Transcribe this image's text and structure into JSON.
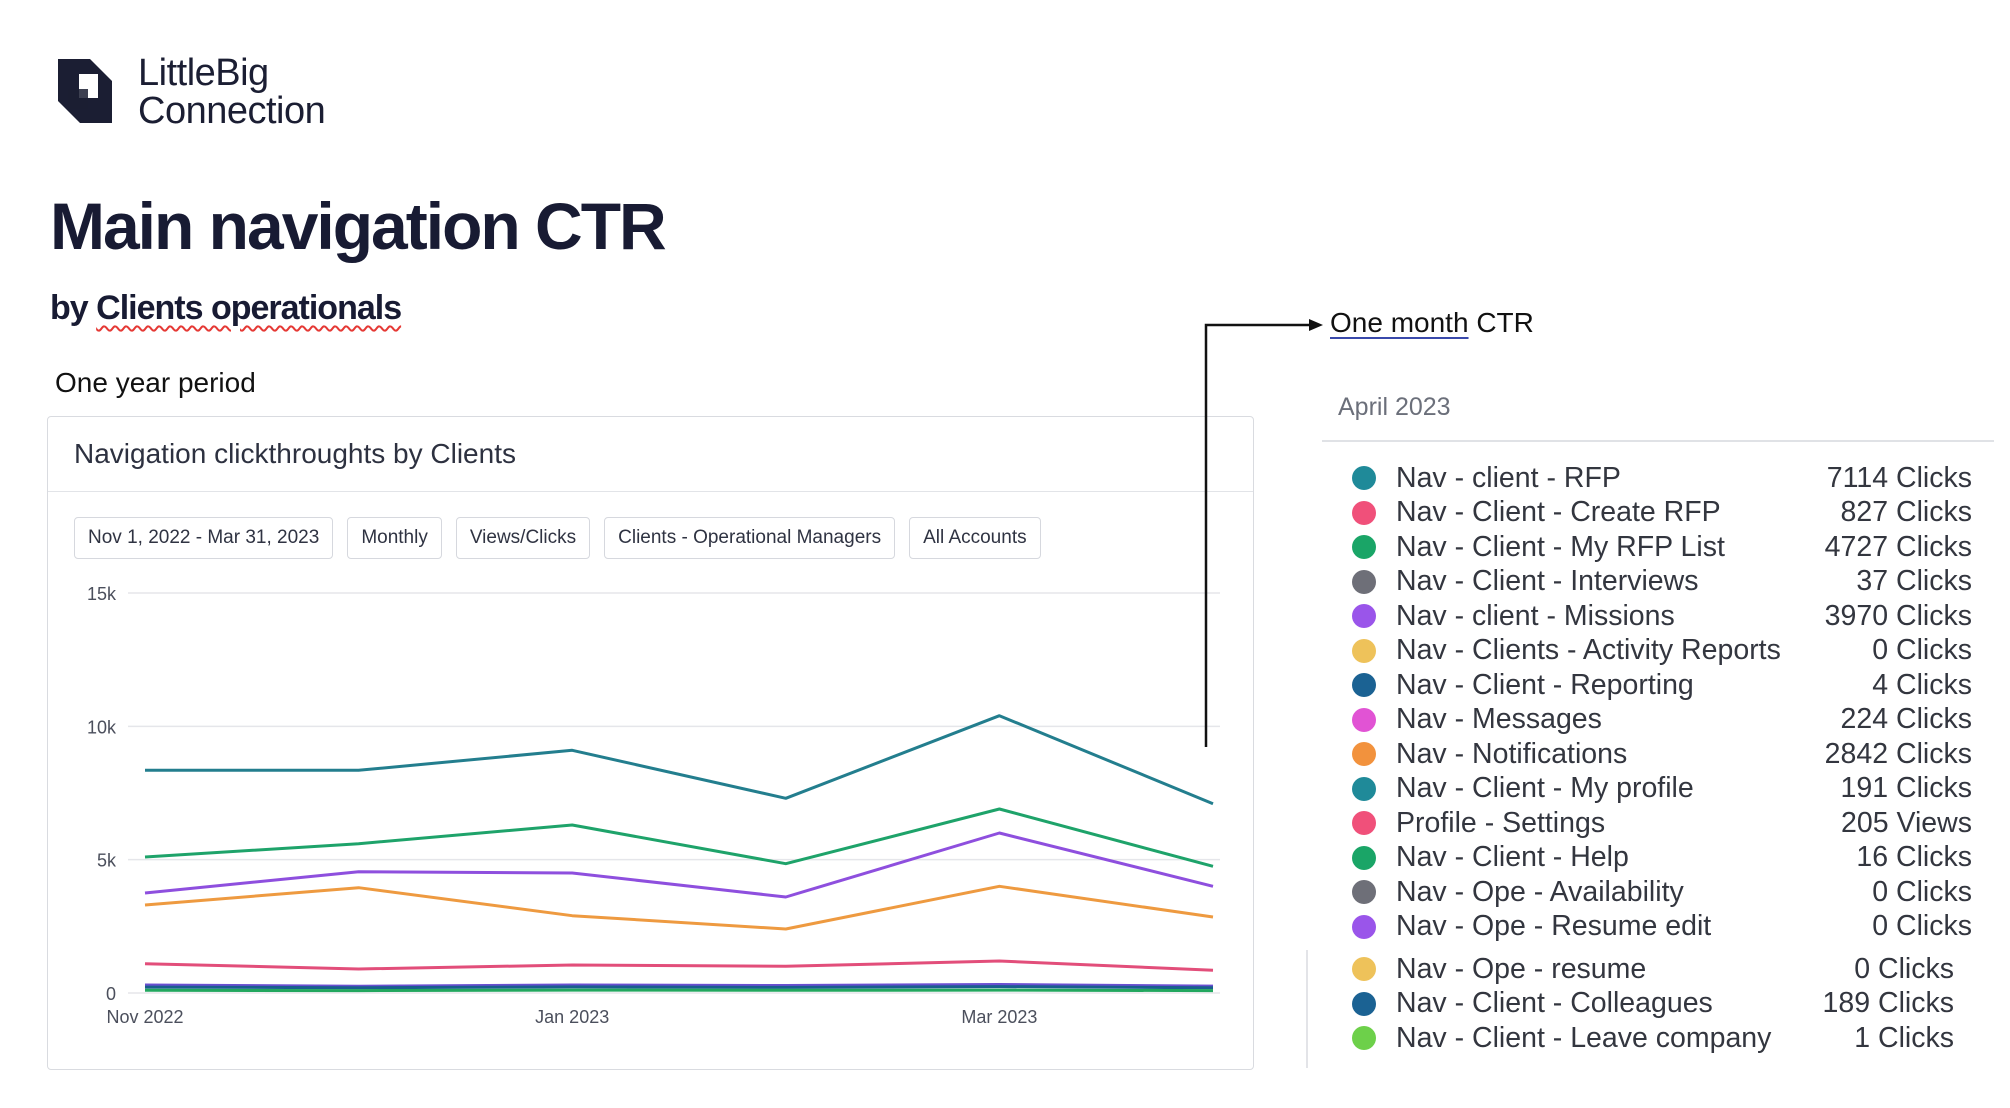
{
  "brand": {
    "line1": "LittleBig",
    "line2": "Connection",
    "color": "#1b1e33"
  },
  "header": {
    "title": "Main navigation CTR",
    "subtitle_prefix": "by",
    "subtitle_main": "Clients operationals",
    "period": "One year period"
  },
  "panel": {
    "title": "Navigation clickthroughts by Clients",
    "filters": [
      {
        "label": "Nov 1, 2022 - Mar 31, 2023"
      },
      {
        "label": "Monthly"
      },
      {
        "label": "Views/Clicks"
      },
      {
        "label": "Clients - Operational Managers"
      },
      {
        "label": "All Accounts"
      }
    ]
  },
  "chart_data": {
    "type": "line",
    "x": [
      "2022-11-01",
      "2022-12-01",
      "2023-01-01",
      "2023-02-01",
      "2023-03-01",
      "2023-04-01"
    ],
    "x_ticks": [
      "Nov 2022",
      "Jan 2023",
      "Mar 2023"
    ],
    "y_ticks": [
      "0",
      "5k",
      "10k",
      "15k"
    ],
    "ylim": [
      0,
      15000
    ],
    "grid": true,
    "series": [
      {
        "color": "#237e8e",
        "values": [
          8350,
          8350,
          9100,
          7300,
          10400,
          7100
        ]
      },
      {
        "color": "#1ea36a",
        "values": [
          5100,
          5600,
          6300,
          4850,
          6900,
          4750
        ]
      },
      {
        "color": "#8e4fde",
        "values": [
          3750,
          4550,
          4500,
          3600,
          6000,
          4000
        ]
      },
      {
        "color": "#ee9a40",
        "values": [
          3300,
          3950,
          2900,
          2400,
          4000,
          2850
        ]
      },
      {
        "color": "#e24e7a",
        "values": [
          1100,
          900,
          1050,
          1000,
          1200,
          850
        ]
      },
      {
        "color": "#6a4fd1",
        "values": [
          300,
          250,
          300,
          280,
          320,
          260
        ]
      },
      {
        "color": "#1a5e8e",
        "values": [
          220,
          200,
          230,
          210,
          240,
          200
        ]
      },
      {
        "color": "#22a75e",
        "values": [
          100,
          90,
          110,
          100,
          110,
          90
        ]
      }
    ]
  },
  "annotation": {
    "prefix": "One month",
    "suffix": "CTR"
  },
  "month": {
    "label": "April 2023",
    "items": [
      {
        "name": "Nav - client - RFP",
        "value": "7114 Clicks",
        "color": "#1f8a99"
      },
      {
        "name": "Nav - Client - Create RFP",
        "value": "827 Clicks",
        "color": "#f0507a"
      },
      {
        "name": "Nav - Client - My RFP List",
        "value": "4727 Clicks",
        "color": "#1aa567"
      },
      {
        "name": "Nav - Client - Interviews",
        "value": "37 Clicks",
        "color": "#6e6f78"
      },
      {
        "name": "Nav - client - Missions",
        "value": "3970 Clicks",
        "color": "#9a55ea"
      },
      {
        "name": "Nav - Clients - Activity Reports",
        "value": "0 Clicks",
        "color": "#eec25a"
      },
      {
        "name": "Nav - Client - Reporting",
        "value": "4 Clicks",
        "color": "#1b6293"
      },
      {
        "name": "Nav - Messages",
        "value": "224 Clicks",
        "color": "#e153d4"
      },
      {
        "name": "Nav - Notifications",
        "value": "2842 Clicks",
        "color": "#f2923d"
      },
      {
        "name": "Nav - Client - My profile",
        "value": "191 Clicks",
        "color": "#1f8a99"
      },
      {
        "name": "Profile - Settings",
        "value": "205 Views",
        "color": "#f0507a"
      },
      {
        "name": "Nav - Client - Help",
        "value": "16 Clicks",
        "color": "#1aa567"
      },
      {
        "name": "Nav - Ope - Availability",
        "value": "0 Clicks",
        "color": "#6e6f78"
      },
      {
        "name": "Nav - Ope - Resume edit",
        "value": "0 Clicks",
        "color": "#9a55ea"
      },
      {
        "name": "Nav - Ope - resume",
        "value": "0 Clicks",
        "color": "#eec25a"
      },
      {
        "name": "Nav - Client - Colleagues",
        "value": "189 Clicks",
        "color": "#1b6293"
      },
      {
        "name": "Nav - Client - Leave company",
        "value": "1 Clicks",
        "color": "#6dd04a"
      }
    ]
  }
}
